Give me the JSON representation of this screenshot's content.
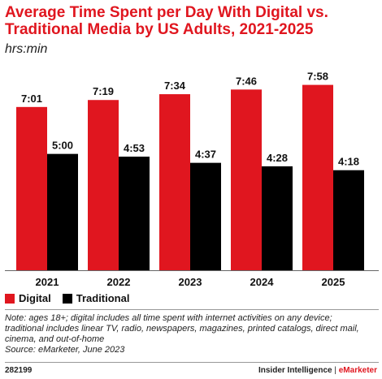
{
  "title_line1": "Average Time Spent per Day With Digital vs.",
  "title_line2": "Traditional Media by US Adults, 2021-2025",
  "subtitle": "hrs:min",
  "legend": [
    {
      "label": "Digital",
      "color": "#e0161f"
    },
    {
      "label": "Traditional",
      "color": "#000000"
    }
  ],
  "notes": [
    "Note: ages 18+; digital includes all time spent with internet activities on any device;",
    "traditional includes linear TV, radio, newspapers, magazines, printed catalogs, direct mail,",
    "cinema, and out-of-home",
    "Source: eMarketer, June 2023"
  ],
  "footer": {
    "id": "282199",
    "brand_part1": "Insider Intelligence",
    "separator": " | ",
    "brand_part2": "eMarketer"
  },
  "chart_data": {
    "type": "bar",
    "categories": [
      "2021",
      "2022",
      "2023",
      "2024",
      "2025"
    ],
    "series": [
      {
        "name": "Digital",
        "color": "#e0161f",
        "values": [
          7.0167,
          7.3167,
          7.5667,
          7.7667,
          7.9667
        ],
        "labels": [
          "7:01",
          "7:19",
          "7:34",
          "7:46",
          "7:58"
        ]
      },
      {
        "name": "Traditional",
        "color": "#000000",
        "values": [
          5.0,
          4.8833,
          4.6167,
          4.4667,
          4.3
        ],
        "labels": [
          "5:00",
          "4:53",
          "4:37",
          "4:28",
          "4:18"
        ]
      }
    ],
    "ylim": [
      0,
      8.65
    ],
    "grid": false,
    "legend_position": "bottom-left"
  }
}
